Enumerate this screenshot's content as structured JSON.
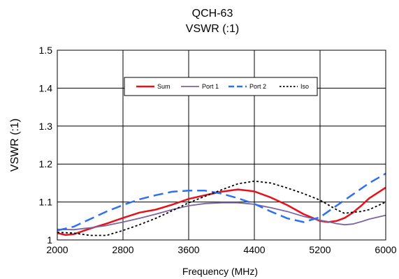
{
  "chart_data": {
    "type": "line",
    "title": "QCH-63",
    "subtitle": "VSWR (:1)",
    "xlabel": "Frequency (MHz)",
    "ylabel": "VSWR (:1)",
    "xlim": [
      2000,
      6000
    ],
    "ylim": [
      1.0,
      1.5
    ],
    "x_ticks": [
      2000,
      2800,
      3600,
      4400,
      5200,
      6000
    ],
    "x_tick_labels": [
      "2000",
      "2800",
      "3600",
      "4400",
      "5200",
      "6000"
    ],
    "y_ticks": [
      1.0,
      1.1,
      1.2,
      1.3,
      1.4,
      1.5
    ],
    "y_tick_labels": [
      "1",
      "1.1",
      "1.2",
      "1.3",
      "1.4",
      "1.5"
    ],
    "grid": true,
    "legend_position": "top-center",
    "series": [
      {
        "name": "Sum",
        "color": "#e8101b",
        "style": "solid",
        "x": [
          2000,
          2100,
          2200,
          2400,
          2600,
          2800,
          3000,
          3200,
          3400,
          3600,
          3800,
          4000,
          4200,
          4400,
          4600,
          4800,
          5000,
          5200,
          5300,
          5400,
          5500,
          5600,
          5700,
          5800,
          6000
        ],
        "y": [
          1.018,
          1.013,
          1.015,
          1.03,
          1.043,
          1.058,
          1.072,
          1.08,
          1.093,
          1.108,
          1.118,
          1.127,
          1.133,
          1.128,
          1.112,
          1.092,
          1.068,
          1.05,
          1.047,
          1.05,
          1.058,
          1.072,
          1.09,
          1.11,
          1.138
        ]
      },
      {
        "name": "Port 1",
        "color": "#7b65a0",
        "style": "solid",
        "x": [
          2000,
          2200,
          2400,
          2600,
          2800,
          3000,
          3200,
          3400,
          3600,
          3800,
          4000,
          4200,
          4400,
          4600,
          4800,
          5000,
          5200,
          5300,
          5400,
          5500,
          5600,
          5700,
          5800,
          6000
        ],
        "y": [
          1.028,
          1.027,
          1.032,
          1.038,
          1.047,
          1.057,
          1.068,
          1.08,
          1.09,
          1.096,
          1.098,
          1.098,
          1.094,
          1.085,
          1.075,
          1.062,
          1.052,
          1.048,
          1.043,
          1.04,
          1.042,
          1.048,
          1.055,
          1.065
        ]
      },
      {
        "name": "Port 2",
        "color": "#2f6ff0",
        "style": "dash",
        "x": [
          2000,
          2200,
          2400,
          2600,
          2800,
          3000,
          3200,
          3400,
          3600,
          3800,
          4000,
          4200,
          4400,
          4600,
          4800,
          5000,
          5200,
          5400,
          5600,
          5800,
          6000
        ],
        "y": [
          1.025,
          1.035,
          1.055,
          1.075,
          1.092,
          1.107,
          1.118,
          1.127,
          1.13,
          1.13,
          1.122,
          1.11,
          1.095,
          1.075,
          1.057,
          1.047,
          1.06,
          1.09,
          1.12,
          1.15,
          1.175
        ]
      },
      {
        "name": "Iso",
        "color": "#000000",
        "style": "dot",
        "x": [
          2000,
          2200,
          2400,
          2600,
          2800,
          3000,
          3200,
          3400,
          3600,
          3800,
          4000,
          4200,
          4400,
          4600,
          4800,
          5000,
          5200,
          5400,
          5500,
          5600,
          5700,
          5800,
          6000
        ],
        "y": [
          1.02,
          1.018,
          1.012,
          1.012,
          1.025,
          1.04,
          1.057,
          1.077,
          1.098,
          1.115,
          1.132,
          1.148,
          1.155,
          1.15,
          1.137,
          1.122,
          1.105,
          1.08,
          1.07,
          1.073,
          1.075,
          1.08,
          1.1
        ]
      }
    ]
  }
}
